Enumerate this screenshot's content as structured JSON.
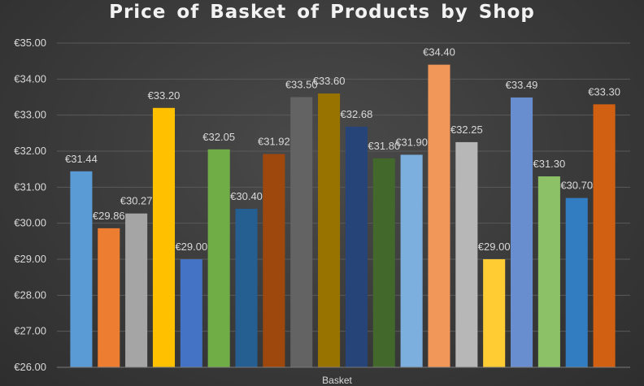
{
  "chart_data": {
    "type": "bar",
    "title": "Price of Basket of Products by Shop",
    "categories": [
      "Basket"
    ],
    "xlabel": "",
    "ylabel": "",
    "ylim": [
      26,
      35
    ],
    "yticks": [
      "€26.00",
      "€27.00",
      "€28.00",
      "€29.00",
      "€30.00",
      "€31.00",
      "€32.00",
      "€33.00",
      "€34.00",
      "€35.00"
    ],
    "grid": true,
    "series": [
      {
        "values": [
          31.44
        ],
        "label": "€31.44",
        "color": "#5b9bd5"
      },
      {
        "values": [
          29.86
        ],
        "label": "€29.86",
        "color": "#ed7d31"
      },
      {
        "values": [
          30.27
        ],
        "label": "€30.27",
        "color": "#a5a5a5"
      },
      {
        "values": [
          33.2
        ],
        "label": "€33.20",
        "color": "#ffc000"
      },
      {
        "values": [
          29.0
        ],
        "label": "€29.00",
        "color": "#4472c4"
      },
      {
        "values": [
          32.05
        ],
        "label": "€32.05",
        "color": "#70ad47"
      },
      {
        "values": [
          30.4
        ],
        "label": "€30.40",
        "color": "#255e91"
      },
      {
        "values": [
          31.92
        ],
        "label": "€31.92",
        "color": "#9e480e"
      },
      {
        "values": [
          33.5
        ],
        "label": "€33.50",
        "color": "#636363"
      },
      {
        "values": [
          33.6
        ],
        "label": "€33.60",
        "color": "#997300"
      },
      {
        "values": [
          32.68
        ],
        "label": "€32.68",
        "color": "#264478"
      },
      {
        "values": [
          31.8
        ],
        "label": "€31.80",
        "color": "#43682b"
      },
      {
        "values": [
          31.9
        ],
        "label": "€31.90",
        "color": "#7cafdd"
      },
      {
        "values": [
          34.4
        ],
        "label": "€34.40",
        "color": "#f1975a"
      },
      {
        "values": [
          32.25
        ],
        "label": "€32.25",
        "color": "#b7b7b7"
      },
      {
        "values": [
          29.0
        ],
        "label": "€29.00",
        "color": "#ffcd33"
      },
      {
        "values": [
          33.49
        ],
        "label": "€33.49",
        "color": "#698ed0"
      },
      {
        "values": [
          31.3
        ],
        "label": "€31.30",
        "color": "#8cc168"
      },
      {
        "values": [
          30.7
        ],
        "label": "€30.70",
        "color": "#327dc2"
      },
      {
        "values": [
          33.3
        ],
        "label": "€33.30",
        "color": "#d26012"
      }
    ]
  }
}
